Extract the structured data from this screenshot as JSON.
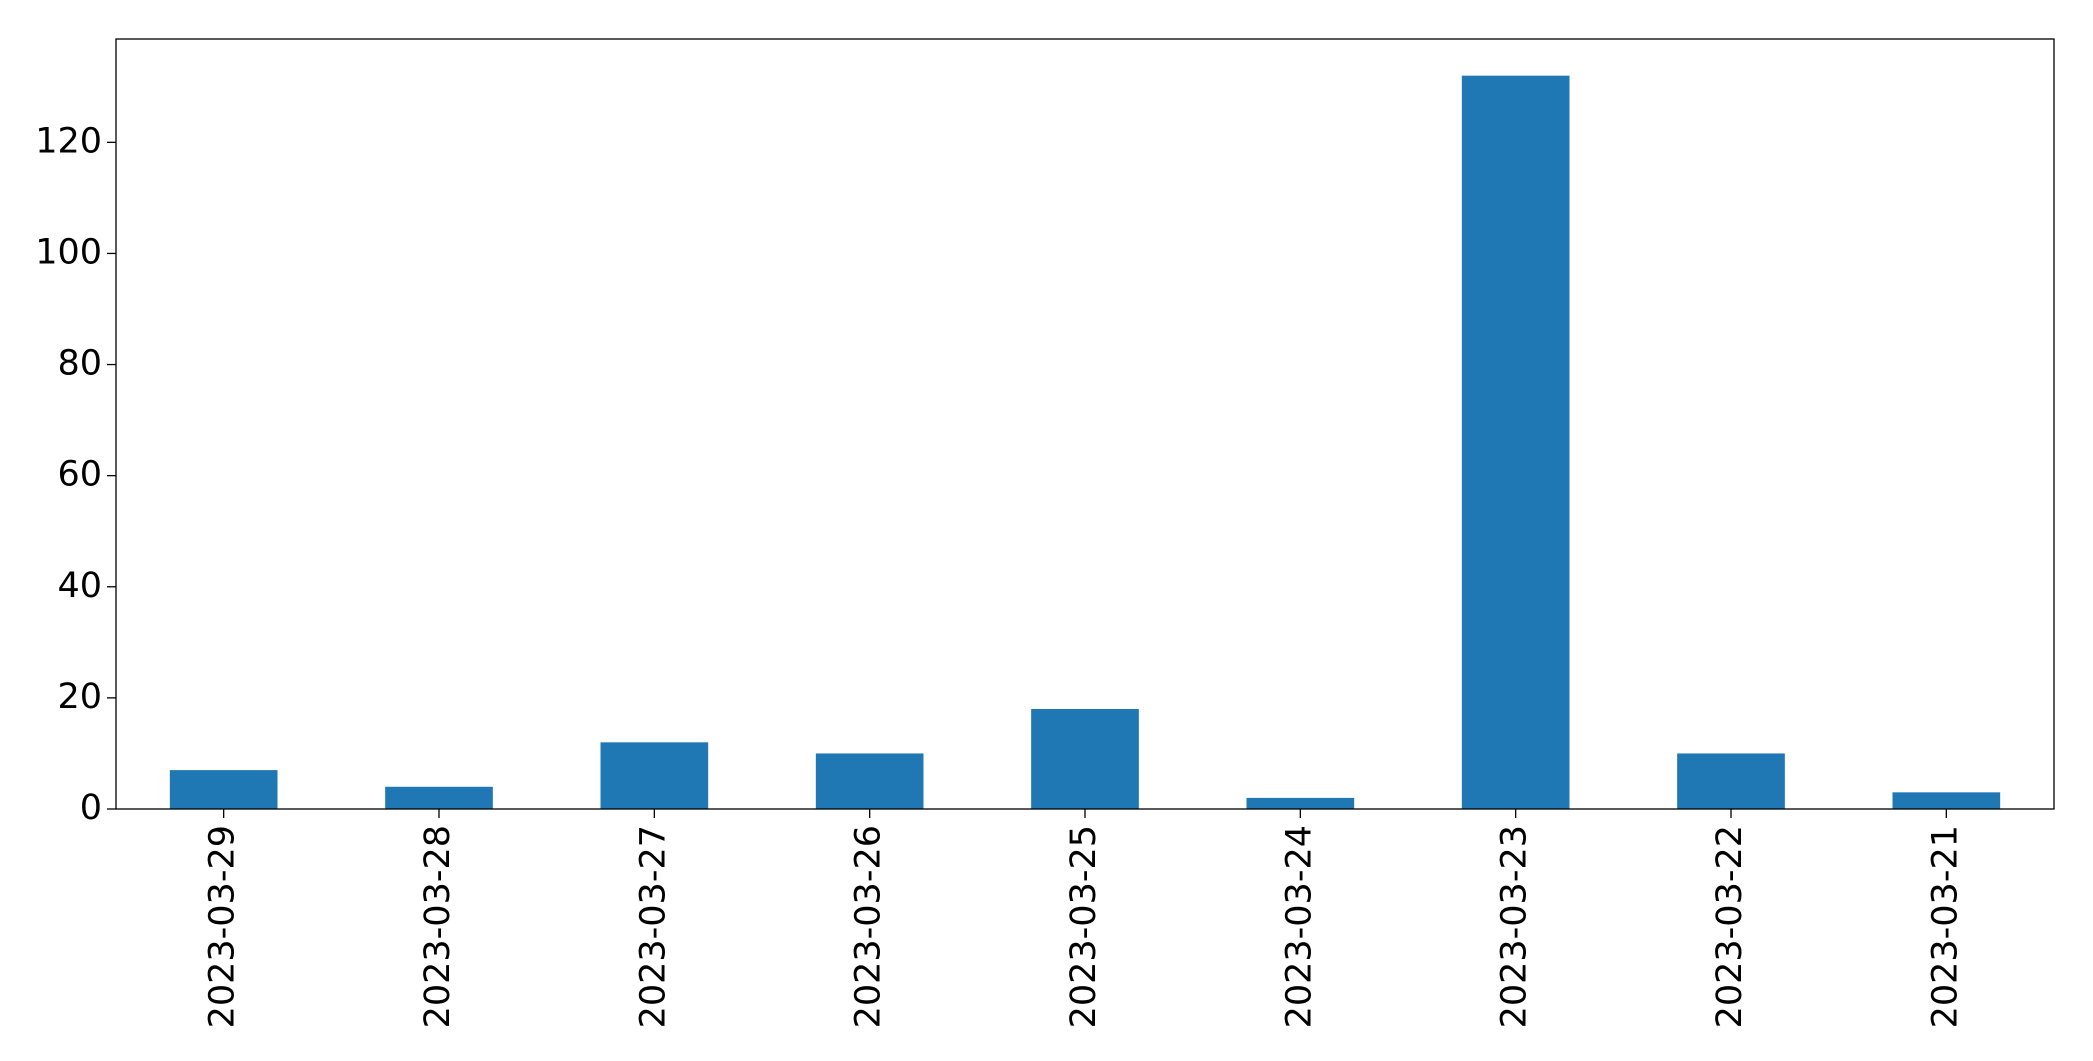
{
  "chart_data": {
    "type": "bar",
    "categories": [
      "2023-03-29",
      "2023-03-28",
      "2023-03-27",
      "2023-03-26",
      "2023-03-25",
      "2023-03-24",
      "2023-03-23",
      "2023-03-22",
      "2023-03-21"
    ],
    "values": [
      7,
      4,
      12,
      10,
      18,
      2,
      132,
      10,
      3
    ],
    "color": "#1f77b4",
    "ylim": [
      0,
      138.6
    ],
    "yticks": [
      0,
      20,
      40,
      60,
      80,
      100,
      120
    ],
    "grid": false
  }
}
